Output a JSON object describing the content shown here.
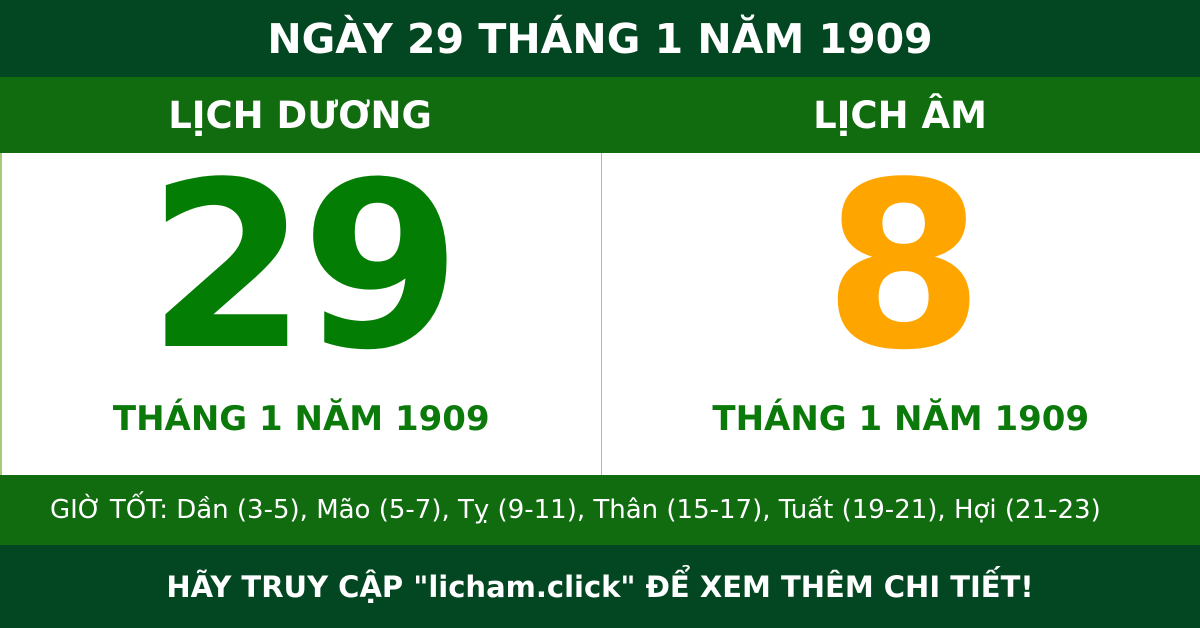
{
  "title": "NGÀY 29 THÁNG 1 NĂM 1909",
  "solar": {
    "label": "LỊCH DƯƠNG",
    "day": "29",
    "month_year": "THÁNG 1 NĂM 1909"
  },
  "lunar": {
    "label": "LỊCH ÂM",
    "day": "8",
    "month_year": "THÁNG 1 NĂM 1909"
  },
  "good_hours": "GIỜ TỐT: Dần (3-5), Mão (5-7), Tỵ (9-11), Thân (15-17), Tuất (19-21), Hợi (21-23)",
  "footer": "HÃY TRUY CẬP \"licham.click\" ĐỂ XEM THÊM CHI TIẾT!",
  "colors": {
    "dark_green": "#034722",
    "green": "#116c10",
    "solar_day": "#037d03",
    "lunar_day": "#ffa500"
  }
}
